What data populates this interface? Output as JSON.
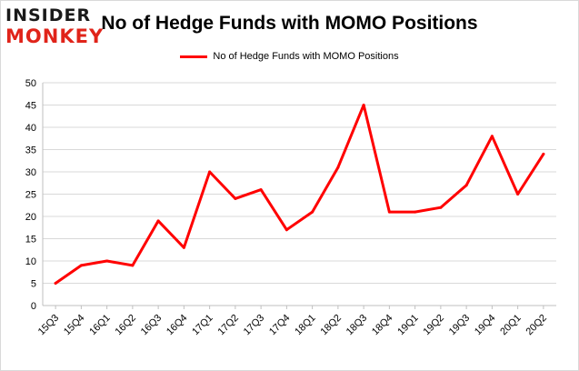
{
  "brand": {
    "line1": "INSIDER",
    "line2": "MONKEY"
  },
  "chart_data": {
    "type": "line",
    "title": "No of Hedge Funds with MOMO Positions",
    "legend": "top-center",
    "categories": [
      "15Q3",
      "15Q4",
      "16Q1",
      "16Q2",
      "16Q3",
      "16Q4",
      "17Q1",
      "17Q2",
      "17Q3",
      "17Q4",
      "18Q1",
      "18Q2",
      "18Q3",
      "18Q4",
      "19Q1",
      "19Q2",
      "19Q3",
      "19Q4",
      "20Q1",
      "20Q2"
    ],
    "series": [
      {
        "name": "No of Hedge Funds with MOMO Positions",
        "color": "#ff0000",
        "values": [
          5,
          9,
          10,
          9,
          19,
          13,
          30,
          24,
          26,
          17,
          21,
          31,
          45,
          21,
          21,
          22,
          27,
          38,
          25,
          34
        ]
      }
    ],
    "ylim": [
      0,
      50
    ],
    "yticks": [
      0,
      5,
      10,
      15,
      20,
      25,
      30,
      35,
      40,
      45,
      50
    ],
    "grid": true,
    "xlabel": "",
    "ylabel": ""
  }
}
